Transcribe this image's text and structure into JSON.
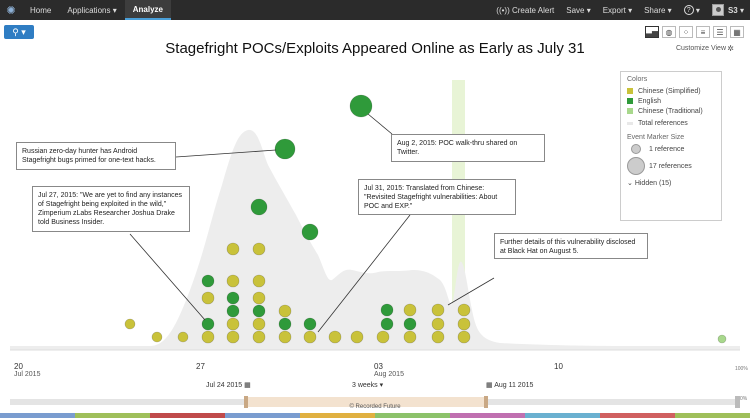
{
  "nav": {
    "home": "Home",
    "applications": "Applications",
    "analyze": "Analyze",
    "create_alert": "Create Alert",
    "save": "Save",
    "export": "Export",
    "share": "Share",
    "help": "?",
    "user": "S3"
  },
  "page": {
    "title": "Stagefright POCs/Exploits Appeared Online as Early as July 31",
    "customize_view": "Customize View"
  },
  "legend": {
    "colors_header": "Colors",
    "items": [
      {
        "label": "Chinese (Simplified)",
        "color": "#c9c23a"
      },
      {
        "label": "English",
        "color": "#2f9a3a"
      },
      {
        "label": "Chinese (Traditional)",
        "color": "#a8d88c"
      }
    ],
    "total_refs": "Total references",
    "size_header": "Event Marker Size",
    "size_small": "1 reference",
    "size_large": "17 references",
    "hidden": "Hidden (15)"
  },
  "annotations": [
    {
      "text": "Russian zero-day hunter has Android Stagefright bugs primed for one-text hacks."
    },
    {
      "text": "Aug 2, 2015: POC walk-thru shared on Twitter."
    },
    {
      "text": "Jul 27, 2015: \"We are yet to find any instances of Stagefright being exploited in the wild,\" Zimperium zLabs Researcher Joshua Drake told Business Insider."
    },
    {
      "text": "Jul 31, 2015: Translated from Chinese: \"Revisited Stagefright vulnerabilities: About POC and EXP.\""
    },
    {
      "text": "Further details of this vulnerability disclosed at Black Hat on August 5."
    }
  ],
  "axis": {
    "ticks": [
      {
        "label": "20",
        "sub": "Jul 2015"
      },
      {
        "label": "27",
        "sub": ""
      },
      {
        "label": "03",
        "sub": "Aug 2015"
      },
      {
        "label": "10",
        "sub": ""
      }
    ]
  },
  "timeline": {
    "start_label": "Jul 24 2015",
    "range_label": "3 weeks",
    "end_label": "Aug 11 2015",
    "pct_top": "100%",
    "pct_bottom": "0%"
  },
  "footer": "© Recorded Future",
  "colors": {
    "simplified": "#c9c23a",
    "english": "#2f9a3a",
    "traditional": "#a8d88c"
  }
}
